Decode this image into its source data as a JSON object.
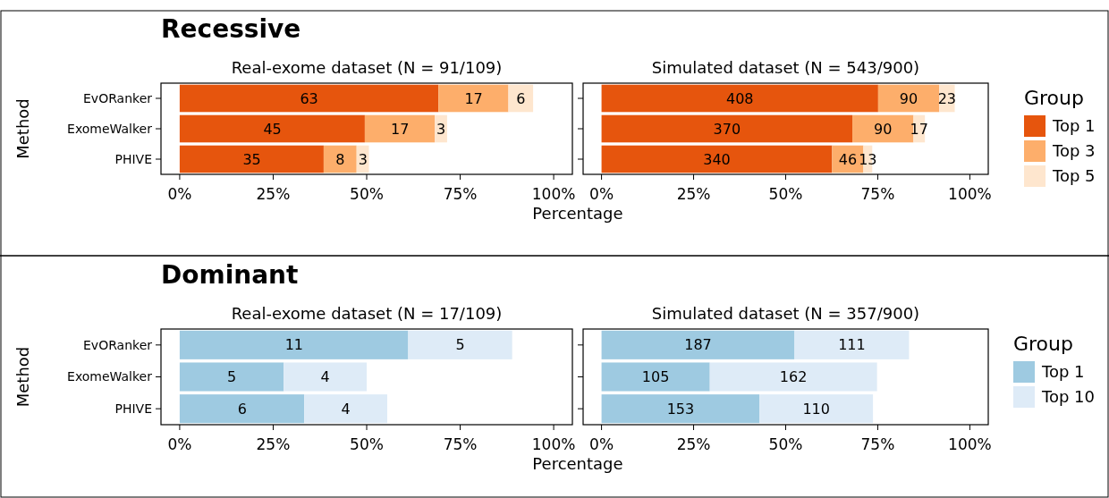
{
  "chart_data": [
    {
      "type": "bar",
      "orientation": "horizontal",
      "stacked": true,
      "title": "Real-exome dataset (N = 91/109)",
      "xlabel": "Percentage",
      "ylabel": "Method",
      "categories": [
        "EvORanker",
        "ExomeWalker",
        "PHIVE"
      ],
      "xlim": [
        -5,
        105
      ],
      "xticks": [
        {
          "value": 0,
          "label": "0%"
        },
        {
          "value": 25,
          "label": "25%"
        },
        {
          "value": 50,
          "label": "50%"
        },
        {
          "value": 75,
          "label": "75%"
        },
        {
          "value": 100,
          "label": "100%"
        }
      ],
      "annotations": [
        "Recessive",
        {
          "text": "63",
          "x": 34.6,
          "y": "EvORanker"
        },
        {
          "text": "45",
          "x": 24.8,
          "y": "ExomeWalker"
        },
        {
          "text": "35",
          "x": 19.3,
          "y": "PHIVE"
        },
        {
          "text": "17",
          "x": 78.6,
          "y": "EvORanker"
        },
        {
          "text": "17",
          "x": 58.9,
          "y": "ExomeWalker"
        },
        {
          "text": "8",
          "x": 42.9,
          "y": "PHIVE"
        },
        {
          "text": "6",
          "x": 91.2,
          "y": "EvORanker"
        },
        {
          "text": "3",
          "x": 69.9,
          "y": "ExomeWalker"
        },
        {
          "text": "3",
          "x": 49.0,
          "y": "PHIVE"
        }
      ],
      "series": [
        {
          "color": "#e6550d",
          "values": [
            69.2,
            49.5,
            38.5
          ]
        },
        {
          "color": "#fdae6b",
          "values": [
            18.7,
            18.7,
            8.8
          ]
        },
        {
          "color": "#fee6ce",
          "values": [
            6.6,
            3.3,
            3.3
          ]
        }
      ]
    },
    {
      "type": "bar",
      "orientation": "horizontal",
      "stacked": true,
      "title": "Simulated dataset (N = 543/900)",
      "legend": "right",
      "legend_title": "Group",
      "tick_labels": "x",
      "categories": [
        "EvORanker",
        "ExomeWalker",
        "PHIVE"
      ],
      "xlim": [
        -5,
        105
      ],
      "xticks": [
        {
          "value": 0,
          "label": "0%"
        },
        {
          "value": 25,
          "label": "25%"
        },
        {
          "value": 50,
          "label": "50%"
        },
        {
          "value": 75,
          "label": "75%"
        },
        {
          "value": 100,
          "label": "100%"
        }
      ],
      "annotations": [
        "408",
        "370",
        "340",
        "90",
        "90",
        "46",
        "23",
        "17",
        "13"
      ],
      "series": [
        {
          "name": "Top 1",
          "color": "#e6550d",
          "values": [
            75.1,
            68.1,
            62.6
          ]
        },
        {
          "name": "Top 3",
          "color": "#fdae6b",
          "values": [
            16.6,
            16.6,
            8.5
          ]
        },
        {
          "name": "Top 5",
          "color": "#fee6ce",
          "values": [
            4.2,
            3.1,
            2.4
          ]
        }
      ]
    },
    {
      "type": "bar",
      "orientation": "horizontal",
      "stacked": true,
      "title": "Real-exome dataset (N = 17/109)",
      "xlabel": "Percentage",
      "ylabel": "Method",
      "categories": [
        "EvORanker",
        "ExomeWalker",
        "PHIVE"
      ],
      "xlim": [
        -5,
        105
      ],
      "xticks": [
        {
          "value": 0,
          "label": "0%"
        },
        {
          "value": 25,
          "label": "25%"
        },
        {
          "value": 50,
          "label": "50%"
        },
        {
          "value": 75,
          "label": "75%"
        },
        {
          "value": 100,
          "label": "100%"
        }
      ],
      "annotations": [
        "Dominant",
        {
          "text": "11",
          "x": 30.6,
          "y": "EvORanker"
        },
        {
          "text": "5",
          "x": 13.9,
          "y": "ExomeWalker"
        },
        {
          "text": "6",
          "x": 16.7,
          "y": "PHIVE"
        },
        {
          "text": "5",
          "x": 75.0,
          "y": "EvORanker"
        },
        {
          "text": "4",
          "x": 38.9,
          "y": "ExomeWalker"
        },
        {
          "text": "4",
          "x": 44.4,
          "y": "PHIVE"
        }
      ],
      "series": [
        {
          "color": "#9ecae1",
          "values": [
            61.1,
            27.8,
            33.3
          ]
        },
        {
          "color": "#deebf7",
          "values": [
            27.8,
            22.2,
            22.2
          ]
        }
      ]
    },
    {
      "type": "bar",
      "orientation": "horizontal",
      "stacked": true,
      "title": "Simulated dataset (N = 357/900)",
      "legend": "right",
      "legend_title": "Group",
      "tick_labels": "x",
      "categories": [
        "EvORanker",
        "ExomeWalker",
        "PHIVE"
      ],
      "xlim": [
        -5,
        105
      ],
      "xticks": [
        {
          "value": 0,
          "label": "0%"
        },
        {
          "value": 25,
          "label": "25%"
        },
        {
          "value": 50,
          "label": "50%"
        },
        {
          "value": 75,
          "label": "75%"
        },
        {
          "value": 100,
          "label": "100%"
        }
      ],
      "annotations": [
        "187",
        "105",
        "153",
        "111",
        "162",
        "110"
      ],
      "series": [
        {
          "name": "Top 1",
          "color": "#9ecae1",
          "values": [
            52.4,
            29.4,
            42.9
          ]
        },
        {
          "name": "Top 10",
          "color": "#deebf7",
          "values": [
            31.1,
            45.4,
            30.8
          ]
        }
      ]
    }
  ]
}
